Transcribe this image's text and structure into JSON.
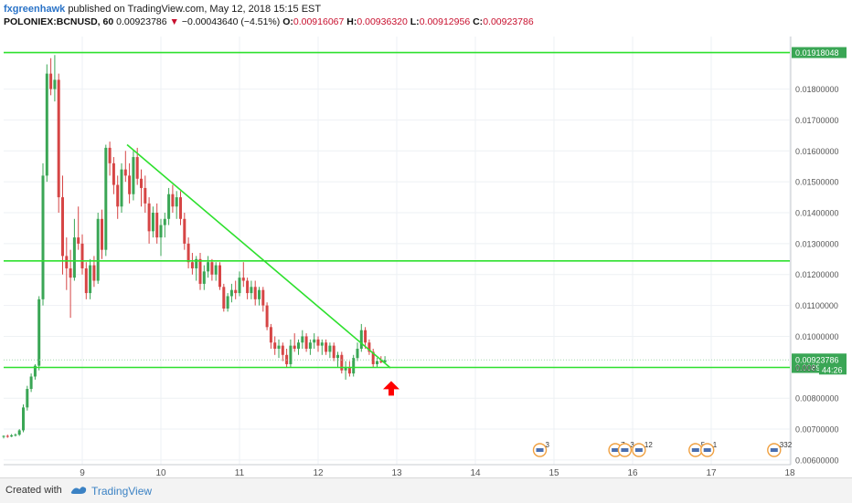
{
  "header": {
    "author": "fxgreenhawk",
    "published_text": "published on TradingView.com, May 12, 2018 15:15 EST",
    "symbol": "POLONIEX:BCNUSD, 60",
    "price": "0.00923786",
    "change_arrow": "▼",
    "change": "−0.00043640 (−4.51%)",
    "o_label": "O:",
    "o_value": "0.00916067",
    "h_label": "H:",
    "h_value": "0.00936320",
    "l_label": "L:",
    "l_value": "0.00912956",
    "c_label": "C:",
    "c_value": "0.00923786"
  },
  "footer": {
    "created_with": "Created with",
    "brand": "TradingView"
  },
  "colors": {
    "up": "#3aa655",
    "down": "#d64545",
    "trend_line": "#2ee02e",
    "arrow": "#ff0000",
    "price_label_bg": "#3aa655",
    "axis_text": "#555555"
  },
  "chart_data": {
    "type": "candlestick",
    "x_tick_labels": [
      "9",
      "10",
      "11",
      "12",
      "13",
      "14",
      "15",
      "16",
      "17",
      "18"
    ],
    "y_tick_labels": [
      "0.00600000",
      "0.00700000",
      "0.00800000",
      "0.00900000",
      "0.01000000",
      "0.01100000",
      "0.01200000",
      "0.01300000",
      "0.01400000",
      "0.01500000",
      "0.01600000",
      "0.01700000",
      "0.01800000"
    ],
    "y_ticks": [
      0.006,
      0.007,
      0.008,
      0.009,
      0.01,
      0.011,
      0.012,
      0.013,
      0.014,
      0.015,
      0.016,
      0.017,
      0.018
    ],
    "ylim": [
      0.00585,
      0.0197
    ],
    "xlim": [
      8.0,
      18.0
    ],
    "horizontal_lines": [
      {
        "value": 0.01918048,
        "label": "0.01918048"
      },
      {
        "value": 0.01244,
        "label": ""
      },
      {
        "value": 0.00899517,
        "label": "0.00899517"
      }
    ],
    "trend_line": {
      "x1": 9.57,
      "y1": 0.0162,
      "x2": 12.92,
      "y2": 0.00898
    },
    "arrow": {
      "x": 12.93,
      "y": 0.00832,
      "direction": "up"
    },
    "last_price_label": "0.00923786",
    "countdown_label": "44:26",
    "partial_tick_label": "0.009",
    "event_markers": [
      {
        "x": 14.82,
        "label": "3"
      },
      {
        "x": 15.78,
        "label": "7"
      },
      {
        "x": 15.9,
        "label": "3"
      },
      {
        "x": 16.08,
        "label": "12"
      },
      {
        "x": 16.8,
        "label": "5"
      },
      {
        "x": 16.95,
        "label": "1"
      },
      {
        "x": 17.8,
        "label": "332"
      }
    ],
    "candles": [
      [
        8.0,
        0.00675,
        0.0068,
        0.0067,
        0.00678
      ],
      [
        8.05,
        0.00678,
        0.00682,
        0.00672,
        0.00676
      ],
      [
        8.1,
        0.00676,
        0.00684,
        0.00674,
        0.0068
      ],
      [
        8.15,
        0.0068,
        0.00686,
        0.00676,
        0.00682
      ],
      [
        8.2,
        0.00682,
        0.007,
        0.00678,
        0.00696
      ],
      [
        8.25,
        0.00696,
        0.0078,
        0.0069,
        0.0077
      ],
      [
        8.3,
        0.0077,
        0.0084,
        0.0076,
        0.0083
      ],
      [
        8.35,
        0.0083,
        0.0088,
        0.0082,
        0.0087
      ],
      [
        8.4,
        0.0087,
        0.0091,
        0.0086,
        0.00905
      ],
      [
        8.45,
        0.00905,
        0.0113,
        0.0089,
        0.0112
      ],
      [
        8.5,
        0.0112,
        0.0156,
        0.011,
        0.0152
      ],
      [
        8.55,
        0.0152,
        0.0188,
        0.015,
        0.0185
      ],
      [
        8.6,
        0.0185,
        0.019,
        0.0178,
        0.018
      ],
      [
        8.65,
        0.018,
        0.0191,
        0.0176,
        0.0183
      ],
      [
        8.7,
        0.0183,
        0.0185,
        0.014,
        0.0145
      ],
      [
        8.75,
        0.0145,
        0.0152,
        0.012,
        0.0126
      ],
      [
        8.8,
        0.0126,
        0.0132,
        0.0115,
        0.0122
      ],
      [
        8.85,
        0.0122,
        0.0128,
        0.0106,
        0.0119
      ],
      [
        8.9,
        0.0119,
        0.0138,
        0.0118,
        0.0132
      ],
      [
        8.95,
        0.0132,
        0.0142,
        0.0128,
        0.013
      ],
      [
        9.0,
        0.013,
        0.0133,
        0.012,
        0.0122
      ],
      [
        9.05,
        0.0122,
        0.0124,
        0.0112,
        0.0114
      ],
      [
        9.1,
        0.0114,
        0.0125,
        0.0112,
        0.0123
      ],
      [
        9.15,
        0.0123,
        0.0126,
        0.0116,
        0.0118
      ],
      [
        9.2,
        0.0118,
        0.014,
        0.0117,
        0.0138
      ],
      [
        9.25,
        0.0138,
        0.0141,
        0.0125,
        0.0128
      ],
      [
        9.3,
        0.0128,
        0.0162,
        0.0126,
        0.0161
      ],
      [
        9.35,
        0.0161,
        0.0163,
        0.0152,
        0.0156
      ],
      [
        9.4,
        0.0156,
        0.0158,
        0.0146,
        0.0149
      ],
      [
        9.45,
        0.0149,
        0.0152,
        0.0138,
        0.0142
      ],
      [
        9.5,
        0.0142,
        0.0156,
        0.014,
        0.0154
      ],
      [
        9.55,
        0.0154,
        0.016,
        0.015,
        0.0152
      ],
      [
        9.6,
        0.0152,
        0.0156,
        0.0143,
        0.0146
      ],
      [
        9.65,
        0.0146,
        0.016,
        0.0144,
        0.0158
      ],
      [
        9.7,
        0.0158,
        0.0161,
        0.0149,
        0.0151
      ],
      [
        9.75,
        0.0151,
        0.0154,
        0.0142,
        0.0148
      ],
      [
        9.8,
        0.0148,
        0.0152,
        0.014,
        0.0143
      ],
      [
        9.85,
        0.0143,
        0.0145,
        0.013,
        0.0134
      ],
      [
        9.9,
        0.0134,
        0.0142,
        0.0132,
        0.014
      ],
      [
        9.95,
        0.014,
        0.0143,
        0.013,
        0.0132
      ],
      [
        10.0,
        0.0132,
        0.0138,
        0.0126,
        0.0136
      ],
      [
        10.05,
        0.0136,
        0.014,
        0.0132,
        0.0138
      ],
      [
        10.1,
        0.0138,
        0.0148,
        0.0136,
        0.0146
      ],
      [
        10.15,
        0.0146,
        0.0149,
        0.014,
        0.0142
      ],
      [
        10.2,
        0.0142,
        0.0147,
        0.0138,
        0.0145
      ],
      [
        10.25,
        0.0145,
        0.0147,
        0.0136,
        0.0138
      ],
      [
        10.3,
        0.0138,
        0.014,
        0.0128,
        0.013
      ],
      [
        10.35,
        0.013,
        0.0132,
        0.0122,
        0.0124
      ],
      [
        10.4,
        0.0124,
        0.0127,
        0.012,
        0.0122
      ],
      [
        10.45,
        0.0122,
        0.0126,
        0.0118,
        0.0125
      ],
      [
        10.5,
        0.0125,
        0.0127,
        0.0115,
        0.0117
      ],
      [
        10.55,
        0.0117,
        0.0123,
        0.0115,
        0.0121
      ],
      [
        10.6,
        0.0121,
        0.0126,
        0.0119,
        0.0124
      ],
      [
        10.65,
        0.0124,
        0.0125,
        0.0118,
        0.012
      ],
      [
        10.7,
        0.012,
        0.0124,
        0.0118,
        0.0123
      ],
      [
        10.75,
        0.0123,
        0.0124,
        0.0115,
        0.0116
      ],
      [
        10.8,
        0.0116,
        0.0117,
        0.0108,
        0.0109
      ],
      [
        10.85,
        0.0109,
        0.0114,
        0.0108,
        0.0113
      ],
      [
        10.9,
        0.0113,
        0.0117,
        0.0111,
        0.0115
      ],
      [
        10.95,
        0.0115,
        0.0118,
        0.0112,
        0.0114
      ],
      [
        11.0,
        0.0114,
        0.0121,
        0.0113,
        0.0119
      ],
      [
        11.05,
        0.0119,
        0.0124,
        0.0116,
        0.0118
      ],
      [
        11.1,
        0.0118,
        0.0119,
        0.0112,
        0.0114
      ],
      [
        11.15,
        0.0114,
        0.0118,
        0.0112,
        0.0116
      ],
      [
        11.2,
        0.0116,
        0.0118,
        0.011,
        0.0112
      ],
      [
        11.25,
        0.0112,
        0.0116,
        0.011,
        0.0115
      ],
      [
        11.3,
        0.0115,
        0.0116,
        0.0108,
        0.011
      ],
      [
        11.35,
        0.011,
        0.0111,
        0.0102,
        0.0103
      ],
      [
        11.4,
        0.0103,
        0.0104,
        0.0096,
        0.0098
      ],
      [
        11.45,
        0.0098,
        0.01,
        0.0094,
        0.0096
      ],
      [
        11.5,
        0.0096,
        0.0099,
        0.0093,
        0.0097
      ],
      [
        11.55,
        0.0097,
        0.0098,
        0.0092,
        0.0094
      ],
      [
        11.6,
        0.0094,
        0.0096,
        0.009,
        0.0091
      ],
      [
        11.65,
        0.0091,
        0.0099,
        0.009,
        0.0097
      ],
      [
        11.7,
        0.0097,
        0.0101,
        0.0095,
        0.0096
      ],
      [
        11.75,
        0.0096,
        0.0099,
        0.0094,
        0.0098
      ],
      [
        11.8,
        0.0098,
        0.0102,
        0.0096,
        0.01
      ],
      [
        11.85,
        0.01,
        0.0101,
        0.0095,
        0.0096
      ],
      [
        11.9,
        0.0096,
        0.0099,
        0.0094,
        0.0098
      ],
      [
        11.95,
        0.0098,
        0.0101,
        0.0096,
        0.0099
      ],
      [
        12.0,
        0.0099,
        0.01,
        0.0095,
        0.0097
      ],
      [
        12.05,
        0.0097,
        0.0099,
        0.0094,
        0.0098
      ],
      [
        12.1,
        0.0098,
        0.0099,
        0.0094,
        0.0095
      ],
      [
        12.15,
        0.0095,
        0.0098,
        0.0093,
        0.0097
      ],
      [
        12.2,
        0.0097,
        0.0098,
        0.0092,
        0.0093
      ],
      [
        12.25,
        0.0093,
        0.0095,
        0.009,
        0.0094
      ],
      [
        12.3,
        0.0094,
        0.0095,
        0.0088,
        0.0089
      ],
      [
        12.35,
        0.0089,
        0.0092,
        0.0086,
        0.009
      ],
      [
        12.4,
        0.009,
        0.0092,
        0.0087,
        0.0088
      ],
      [
        12.45,
        0.0088,
        0.0094,
        0.0087,
        0.0093
      ],
      [
        12.5,
        0.0093,
        0.0098,
        0.0092,
        0.0096
      ],
      [
        12.55,
        0.0096,
        0.0104,
        0.0095,
        0.0102
      ],
      [
        12.6,
        0.0102,
        0.0103,
        0.0096,
        0.0098
      ],
      [
        12.65,
        0.0098,
        0.0099,
        0.0094,
        0.0095
      ],
      [
        12.7,
        0.0095,
        0.0096,
        0.009,
        0.0091
      ],
      [
        12.75,
        0.0091,
        0.0093,
        0.009,
        0.0092
      ],
      [
        12.8,
        0.0092,
        0.00936,
        0.00913,
        0.00916
      ],
      [
        12.85,
        0.00916,
        0.00936,
        0.00913,
        0.00924
      ]
    ]
  }
}
